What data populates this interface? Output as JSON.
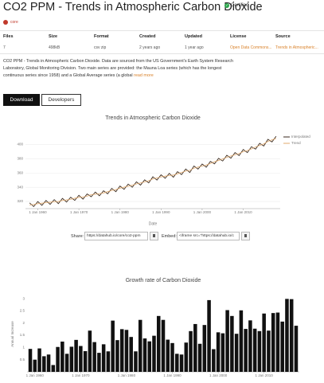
{
  "header": {
    "title": "CO2 PPM - Trends in Atmospheric Carbon Dioxide",
    "badge": "Certified",
    "org": "core"
  },
  "table": {
    "headers": [
      "Files",
      "Size",
      "Format",
      "Created",
      "Updated",
      "License",
      "Source"
    ],
    "rows": [
      [
        "7",
        "498kB",
        "csv zip",
        "2 years ago",
        "1 year ago",
        "Open Data Commons...",
        "Trends in Atmospheric..."
      ]
    ]
  },
  "description": {
    "text": "CO2 PPM - Trends in Atmospheric Carbon Dioxide. Data are sourced from the US Government's Earth System Research Laboratory, Global Monitoring Division. Two main series are provided: the Mauna Loa series (which has the longest continuous series since 1958) and a Global Average series (a global",
    "link": "read more"
  },
  "buttons": [
    "Download",
    "Developers"
  ],
  "share": {
    "share_label": "Share:",
    "share_url": "https://datahub.io/core/co2-ppm",
    "embed_label": "Embed:",
    "embed_code": "<iframe src=\"https://datahub.io/c"
  },
  "chart_data": [
    {
      "type": "line",
      "title": "Trends in Atmospheric Carbon Dioxide",
      "x_label": "Date",
      "grid": true,
      "legend": "top-right",
      "x": [
        1958,
        1959,
        1960,
        1961,
        1962,
        1963,
        1964,
        1965,
        1966,
        1967,
        1968,
        1969,
        1970,
        1971,
        1972,
        1973,
        1974,
        1975,
        1976,
        1977,
        1978,
        1979,
        1980,
        1981,
        1982,
        1983,
        1984,
        1985,
        1986,
        1987,
        1988,
        1989,
        1990,
        1991,
        1992,
        1993,
        1994,
        1995,
        1996,
        1997,
        1998,
        1999,
        2000,
        2001,
        2002,
        2003,
        2004,
        2005,
        2006,
        2007,
        2008,
        2009,
        2010,
        2011,
        2012,
        2013,
        2014,
        2015,
        2016,
        2017,
        2018
      ],
      "series": [
        {
          "name": "Interpolated",
          "color": "#3a2a1e",
          "values": [
            318.0,
            312.9,
            319.9,
            314.6,
            321.4,
            316.0,
            322.6,
            317.0,
            324.4,
            319.2,
            326.0,
            321.6,
            328.7,
            323.3,
            330.5,
            326.7,
            333.2,
            328.1,
            335.0,
            330.8,
            338.4,
            333.8,
            341.7,
            337.1,
            344.4,
            340.0,
            347.6,
            343.0,
            350.4,
            346.2,
            354.6,
            350.1,
            357.4,
            352.6,
            359.4,
            354.1,
            361.8,
            357.8,
            365.6,
            360.7,
            369.7,
            365.4,
            372.6,
            368.1,
            376.2,
            372.8,
            380.5,
            376.8,
            384.9,
            380.8,
            388.6,
            384.4,
            392.9,
            388.6,
            396.8,
            393.5,
            401.6,
            397.8,
            407.2,
            403.5,
            411.5
          ]
        },
        {
          "name": "Trend",
          "color": "#e0a96d",
          "values": [
            315.0,
            315.9,
            316.9,
            317.6,
            318.4,
            319.0,
            319.6,
            320.0,
            321.4,
            322.2,
            323.0,
            324.6,
            325.7,
            326.3,
            327.5,
            329.7,
            330.2,
            331.1,
            332.0,
            333.8,
            335.4,
            336.8,
            338.7,
            340.1,
            341.4,
            343.0,
            344.6,
            346.0,
            347.4,
            349.2,
            351.6,
            353.1,
            354.4,
            355.6,
            356.4,
            357.1,
            358.8,
            360.8,
            362.6,
            363.7,
            366.7,
            368.4,
            369.6,
            371.1,
            373.2,
            375.8,
            377.5,
            379.8,
            381.9,
            383.8,
            385.6,
            387.4,
            389.9,
            391.6,
            393.8,
            396.5,
            398.6,
            400.8,
            404.2,
            406.5,
            408.5
          ]
        }
      ],
      "xlim": [
        1957,
        2019
      ],
      "xticks": [
        {
          "value": 1960,
          "label": "1 Jan 1960"
        },
        {
          "value": 1970,
          "label": "1 Jan 1970"
        },
        {
          "value": 1980,
          "label": "1 Jan 1980"
        },
        {
          "value": 1990,
          "label": "1 Jan 1990"
        },
        {
          "value": 2000,
          "label": "1 Jan 2000"
        },
        {
          "value": 2010,
          "label": "1 Jan 2010"
        }
      ],
      "ylim": [
        310,
        415
      ],
      "yticks": [
        320,
        340,
        360,
        380,
        400
      ]
    },
    {
      "type": "bar",
      "title": "Growth rate of Carbon Dioxide",
      "y_label": "Annual Increase",
      "grid": false,
      "color": "#111111",
      "x": [
        1959,
        1960,
        1961,
        1962,
        1963,
        1964,
        1965,
        1966,
        1967,
        1968,
        1969,
        1970,
        1971,
        1972,
        1973,
        1974,
        1975,
        1976,
        1977,
        1978,
        1979,
        1980,
        1981,
        1982,
        1983,
        1984,
        1985,
        1986,
        1987,
        1988,
        1989,
        1990,
        1991,
        1992,
        1993,
        1994,
        1995,
        1996,
        1997,
        1998,
        1999,
        2000,
        2001,
        2002,
        2003,
        2004,
        2005,
        2006,
        2007,
        2008,
        2009,
        2010,
        2011,
        2012,
        2013,
        2014,
        2015,
        2016,
        2017
      ],
      "values": [
        0.94,
        0.5,
        0.96,
        0.64,
        0.71,
        0.28,
        1.02,
        1.24,
        0.74,
        1.03,
        1.31,
        1.06,
        0.85,
        1.69,
        1.22,
        0.78,
        1.13,
        0.84,
        2.1,
        1.3,
        1.75,
        1.72,
        1.43,
        0.84,
        2.13,
        1.37,
        1.25,
        1.48,
        2.29,
        2.13,
        1.32,
        1.18,
        0.74,
        0.71,
        1.2,
        1.67,
        1.96,
        1.15,
        1.92,
        2.94,
        0.93,
        1.62,
        1.58,
        2.53,
        2.29,
        1.56,
        2.52,
        1.76,
        2.11,
        1.77,
        1.67,
        2.39,
        1.69,
        2.41,
        2.43,
        2.06,
        2.99,
        2.98,
        1.89
      ],
      "xlim": [
        1958.3,
        2017.7
      ],
      "xticks": [
        {
          "value": 1960,
          "label": "1 Jan 1960"
        },
        {
          "value": 1970,
          "label": "1 Jan 1970"
        },
        {
          "value": 1980,
          "label": "1 Jan 1980"
        },
        {
          "value": 1990,
          "label": "1 Jan 1990"
        },
        {
          "value": 2000,
          "label": "1 Jan 2000"
        },
        {
          "value": 2010,
          "label": "1 Jan 2010"
        }
      ],
      "ylim": [
        0,
        3.1
      ],
      "yticks": [
        0.5,
        1,
        1.5,
        2,
        2.5,
        3
      ]
    }
  ]
}
